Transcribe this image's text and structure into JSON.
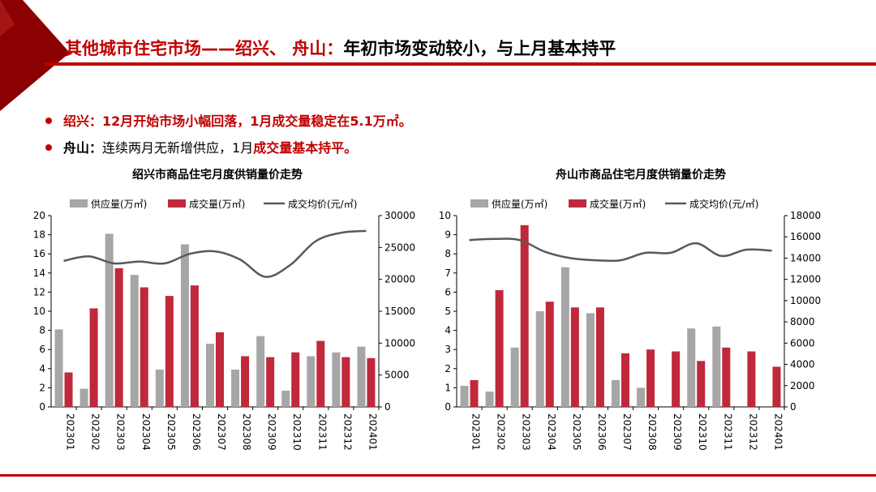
{
  "page": {
    "title_red": "其他城市住宅市场——绍兴、 舟山：",
    "title_black": "年初市场变动较小，与上月基本持平",
    "bullets": [
      {
        "label": "绍兴：",
        "text": "12月开始市场小幅回落，1月成交量稳定在5.1万㎡。"
      },
      {
        "label": "舟山：",
        "text_plain": "连续两月无新增供应，1月",
        "text_red": "成交量基本持平。"
      }
    ]
  },
  "colors": {
    "supply": "#a6a6a6",
    "deal": "#c0283c",
    "price": "#595959",
    "accent": "#c00000"
  },
  "chart_data": [
    {
      "type": "bar",
      "title": "绍兴市商品住宅月度供销量价走势",
      "categories": [
        "202301",
        "202302",
        "202303",
        "202304",
        "202305",
        "202306",
        "202307",
        "202308",
        "202309",
        "202310",
        "202311",
        "202312",
        "202401"
      ],
      "series": [
        {
          "name": "供应量(万㎡)",
          "kind": "bar",
          "values": [
            8.1,
            1.9,
            18.1,
            13.8,
            3.9,
            17.0,
            6.6,
            3.9,
            7.4,
            1.7,
            5.3,
            5.7,
            6.3
          ]
        },
        {
          "name": "成交量(万㎡)",
          "kind": "bar",
          "values": [
            3.6,
            10.3,
            14.5,
            12.5,
            11.6,
            12.7,
            7.8,
            5.3,
            5.2,
            5.7,
            6.9,
            5.2,
            5.1
          ]
        },
        {
          "name": "成交均价(元/㎡)",
          "kind": "line",
          "axis": "right",
          "values": [
            22900,
            23600,
            22500,
            22800,
            22500,
            24000,
            24400,
            23100,
            20400,
            22300,
            26000,
            27300,
            27600
          ]
        }
      ],
      "ylim": [
        0,
        20
      ],
      "yticks": [
        "0",
        "2",
        "4",
        "6",
        "8",
        "10",
        "12",
        "14",
        "16",
        "18",
        "20"
      ],
      "y2lim": [
        0,
        30000
      ],
      "y2ticks": [
        "0",
        "5000",
        "10000",
        "15000",
        "20000",
        "25000",
        "30000"
      ]
    },
    {
      "type": "bar",
      "title": "舟山市商品住宅月度供销量价走势",
      "categories": [
        "202301",
        "202302",
        "202303",
        "202304",
        "202305",
        "202306",
        "202307",
        "202308",
        "202309",
        "202310",
        "202311",
        "202312",
        "202401"
      ],
      "series": [
        {
          "name": "供应量(万㎡)",
          "kind": "bar",
          "values": [
            1.1,
            0.8,
            3.1,
            5.0,
            7.3,
            4.9,
            1.4,
            1.0,
            0,
            4.1,
            4.2,
            0,
            0
          ]
        },
        {
          "name": "成交量(万㎡)",
          "kind": "bar",
          "values": [
            1.4,
            6.1,
            9.5,
            5.5,
            5.2,
            5.2,
            2.8,
            3.0,
            2.9,
            2.4,
            3.1,
            2.9,
            2.1
          ]
        },
        {
          "name": "成交均价(元/㎡)",
          "kind": "line",
          "axis": "right",
          "values": [
            15700,
            15800,
            15700,
            14600,
            14000,
            13800,
            13800,
            14500,
            14500,
            15400,
            14200,
            14800,
            14700
          ]
        }
      ],
      "ylim": [
        0,
        10
      ],
      "yticks": [
        "0",
        "1",
        "2",
        "3",
        "4",
        "5",
        "6",
        "7",
        "8",
        "9",
        "10"
      ],
      "y2lim": [
        0,
        18000
      ],
      "y2ticks": [
        "0",
        "2000",
        "4000",
        "6000",
        "8000",
        "10000",
        "12000",
        "14000",
        "16000",
        "18000"
      ]
    }
  ]
}
